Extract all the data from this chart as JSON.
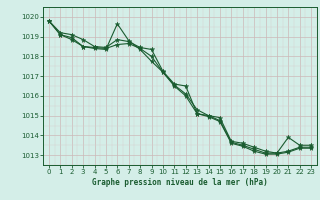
{
  "title": "Graphe pression niveau de la mer (hPa)",
  "background_color": "#d4eee8",
  "grid_color_major": "#aaccc4",
  "grid_color_minor": "#c0dcd8",
  "line_color": "#1a5c30",
  "x_hours": [
    0,
    1,
    2,
    3,
    4,
    5,
    6,
    7,
    8,
    9,
    10,
    11,
    12,
    13,
    14,
    15,
    16,
    17,
    18,
    19,
    20,
    21,
    22,
    23
  ],
  "line1": [
    1019.8,
    1019.2,
    1019.1,
    1018.85,
    1018.5,
    1018.45,
    1018.85,
    1018.75,
    1018.45,
    1018.35,
    1017.25,
    1016.6,
    1016.5,
    1015.1,
    1015.0,
    1014.9,
    1013.7,
    1013.6,
    1013.4,
    1013.2,
    1013.1,
    1013.9,
    1013.5,
    1013.5
  ],
  "line2": [
    1019.8,
    1019.1,
    1018.95,
    1018.5,
    1018.45,
    1018.4,
    1018.6,
    1018.65,
    1018.4,
    1018.0,
    1017.2,
    1016.55,
    1016.1,
    1015.3,
    1015.0,
    1014.75,
    1013.65,
    1013.5,
    1013.3,
    1013.1,
    1013.1,
    1013.2,
    1013.4,
    1013.4
  ],
  "line3": [
    1019.8,
    1019.1,
    1018.85,
    1018.5,
    1018.4,
    1018.35,
    1019.65,
    1018.7,
    1018.35,
    1017.75,
    1017.2,
    1016.5,
    1016.0,
    1015.1,
    1014.95,
    1014.7,
    1013.6,
    1013.45,
    1013.2,
    1013.05,
    1013.05,
    1013.15,
    1013.35,
    1013.35
  ],
  "ylim": [
    1012.5,
    1020.5
  ],
  "xlim": [
    -0.5,
    23.5
  ],
  "yticks": [
    1013,
    1014,
    1015,
    1016,
    1017,
    1018,
    1019,
    1020
  ],
  "xticks": [
    0,
    1,
    2,
    3,
    4,
    5,
    6,
    7,
    8,
    9,
    10,
    11,
    12,
    13,
    14,
    15,
    16,
    17,
    18,
    19,
    20,
    21,
    22,
    23
  ]
}
